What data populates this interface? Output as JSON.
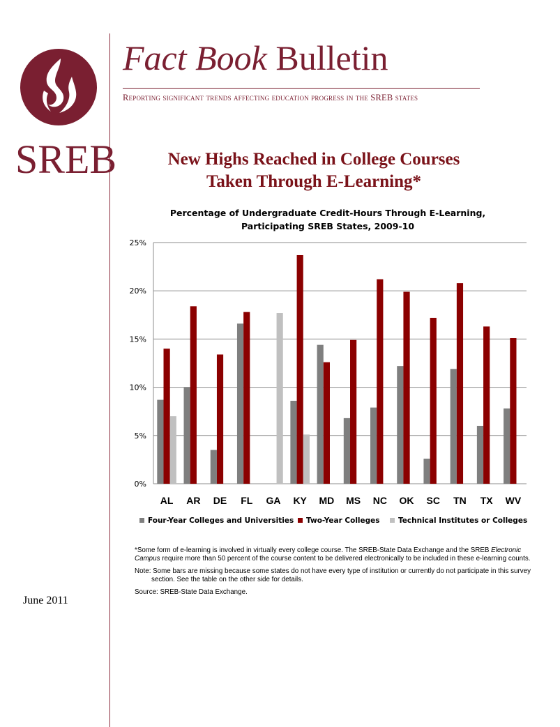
{
  "branding": {
    "org": "SREB",
    "masthead_italic": "Fact Book",
    "masthead_rest": " Bulletin",
    "tagline": "Reporting significant trends affecting education progress in the SREB states",
    "brand_color": "#7a1f31",
    "logo_icon": "flame-icon"
  },
  "headline": {
    "line1": "New Highs Reached in College Courses",
    "line2": "Taken Through E-Learning*",
    "color": "#7a1219"
  },
  "date": "June 2011",
  "chart_data": {
    "type": "bar",
    "title_line1": "Percentage of Undergraduate Credit-Hours Through E-Learning,",
    "title_line2": "Participating SREB States, 2009-10",
    "categories": [
      "AL",
      "AR",
      "DE",
      "FL",
      "GA",
      "KY",
      "MD",
      "MS",
      "NC",
      "OK",
      "SC",
      "TN",
      "TX",
      "WV"
    ],
    "ylim": [
      0,
      25
    ],
    "yticks": [
      0,
      5,
      10,
      15,
      20,
      25
    ],
    "ytick_labels": [
      "0%",
      "5%",
      "10%",
      "15%",
      "20%",
      "25%"
    ],
    "grid": true,
    "legend_position": "bottom",
    "series": [
      {
        "name": "Four-Year Colleges and Universities",
        "color": "#7f7f7f",
        "values": [
          8.7,
          10.0,
          3.5,
          16.6,
          null,
          8.6,
          14.4,
          6.8,
          7.9,
          12.2,
          2.6,
          11.9,
          6.0,
          7.8
        ]
      },
      {
        "name": "Two-Year Colleges",
        "color": "#8b0000",
        "values": [
          14.0,
          18.4,
          13.4,
          17.8,
          null,
          23.7,
          12.6,
          14.9,
          21.2,
          19.9,
          17.2,
          20.8,
          16.3,
          15.1
        ]
      },
      {
        "name": "Technical Institutes or Colleges",
        "color": "#c0c0c0",
        "values": [
          7.0,
          null,
          null,
          null,
          17.7,
          5.1,
          null,
          null,
          null,
          null,
          null,
          null,
          null,
          null
        ]
      }
    ]
  },
  "notes": {
    "footnote_pre": "*Some form of e-learning is involved in virtually every college course. The SREB-State Data Exchange and the SREB ",
    "footnote_italic": "Electronic Campus",
    "footnote_post": " require more than 50 percent of the course content to be delivered electronically to be included in these e-learning counts.",
    "note": "Note: Some bars are missing because some states do not have every type of institution or currently do not participate in this survey section. See the table on the other side for details.",
    "source": "Source: SREB-State Data Exchange."
  }
}
